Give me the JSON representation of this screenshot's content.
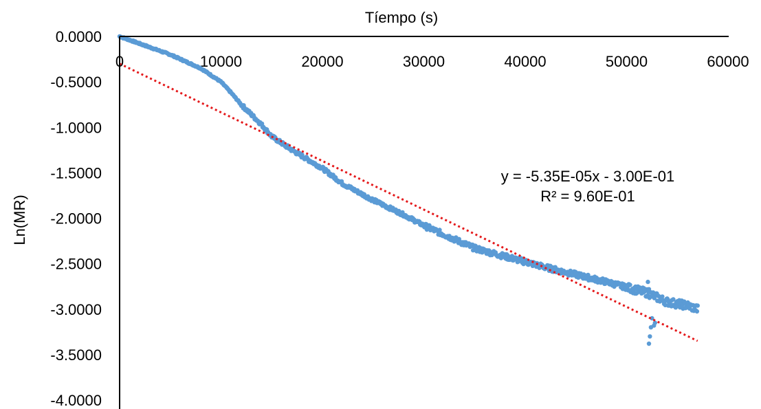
{
  "chart_data": {
    "type": "scatter",
    "title": "",
    "xlabel": "Tíempo (s)",
    "ylabel": "Ln(MR)",
    "xlim": [
      0,
      60000
    ],
    "ylim": [
      -4.0,
      0.0
    ],
    "x_ticks": [
      0,
      10000,
      20000,
      30000,
      40000,
      50000,
      60000
    ],
    "x_tick_labels": [
      "0",
      "10000",
      "20000",
      "30000",
      "40000",
      "50000",
      "60000"
    ],
    "y_ticks": [
      0,
      -0.5,
      -1.0,
      -1.5,
      -2.0,
      -2.5,
      -3.0,
      -3.5,
      -4.0
    ],
    "y_tick_labels": [
      "0.0000",
      "-0.5000",
      "-1.0000",
      "-1.5000",
      "-2.0000",
      "-2.5000",
      "-3.0000",
      "-3.5000",
      "-4.0000"
    ],
    "x_axis_position": "top",
    "grid": false,
    "legend": "none",
    "series": [
      {
        "marker_color": "#5b9bd5",
        "anchor_points": [
          [
            0,
            0.0
          ],
          [
            2000,
            -0.08
          ],
          [
            5000,
            -0.2
          ],
          [
            8000,
            -0.35
          ],
          [
            10000,
            -0.5
          ],
          [
            11000,
            -0.62
          ],
          [
            12000,
            -0.75
          ],
          [
            14000,
            -0.97
          ],
          [
            15000,
            -1.1
          ],
          [
            17000,
            -1.25
          ],
          [
            20000,
            -1.45
          ],
          [
            22000,
            -1.62
          ],
          [
            25000,
            -1.8
          ],
          [
            28000,
            -1.96
          ],
          [
            30000,
            -2.08
          ],
          [
            32000,
            -2.18
          ],
          [
            35000,
            -2.33
          ],
          [
            38000,
            -2.42
          ],
          [
            40000,
            -2.48
          ],
          [
            42000,
            -2.54
          ],
          [
            45000,
            -2.62
          ],
          [
            48000,
            -2.7
          ],
          [
            50000,
            -2.76
          ],
          [
            52000,
            -2.82
          ],
          [
            54000,
            -2.92
          ],
          [
            56000,
            -2.96
          ],
          [
            57000,
            -3.0
          ]
        ],
        "outliers": [
          [
            52200,
            -3.38
          ],
          [
            52300,
            -3.3
          ],
          [
            52400,
            -3.2
          ],
          [
            52500,
            -3.1
          ],
          [
            52100,
            -2.7
          ],
          [
            52200,
            -2.78
          ],
          [
            52700,
            -3.18
          ],
          [
            52800,
            -3.15
          ]
        ]
      }
    ],
    "trendline": {
      "type": "linear",
      "slope": -5.35e-05,
      "intercept": -0.3,
      "x_range": [
        0,
        57000
      ],
      "color": "#e41a1c",
      "style": "dotted",
      "equation_label": "y = -5.35E-05x - 3.00E-01",
      "r2_label": "R² = 9.60E-01"
    }
  }
}
